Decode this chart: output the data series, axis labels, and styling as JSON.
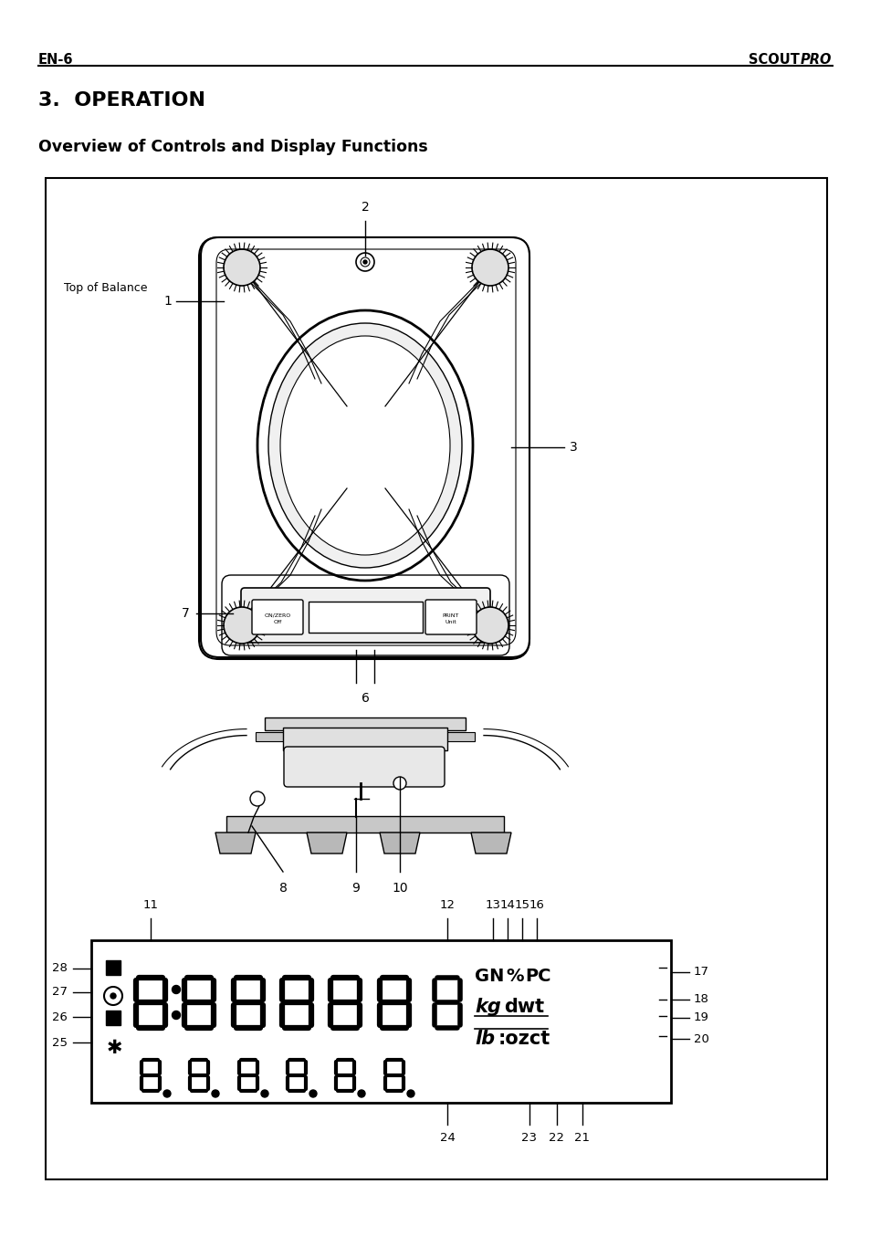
{
  "page_bg": "#ffffff",
  "header_left": "EN-6",
  "section": "3.  OPERATION",
  "subsection": "Overview of Controls and Display Functions"
}
